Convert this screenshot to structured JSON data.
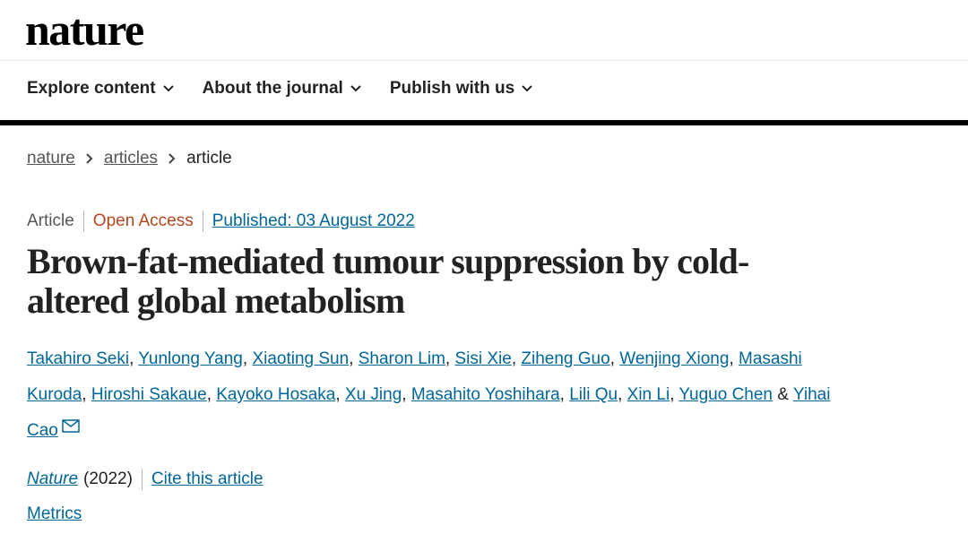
{
  "header": {
    "logo": "nature",
    "nav": [
      "Explore content",
      "About the journal",
      "Publish with us"
    ]
  },
  "breadcrumb": [
    "nature",
    "articles",
    "article"
  ],
  "article": {
    "type": "Article",
    "access": "Open Access",
    "published": "Published: 03 August 2022",
    "title": "Brown-fat-mediated tumour suppression by cold-altered global metabolism",
    "authors": [
      "Takahiro Seki",
      "Yunlong Yang",
      "Xiaoting Sun",
      "Sharon Lim",
      "Sisi Xie",
      "Ziheng Guo",
      "Wenjing Xiong",
      "Masashi Kuroda",
      "Hiroshi Sakaue",
      "Kayoko Hosaka",
      "Xu Jing",
      "Masahito Yoshihara",
      "Lili Qu",
      "Xin Li",
      "Yuguo Chen",
      "Yihai Cao"
    ],
    "author_separator": ",",
    "author_conjunction": "&",
    "journal": "Nature",
    "year": "(2022)",
    "cite": "Cite this article",
    "metrics": "Metrics"
  }
}
